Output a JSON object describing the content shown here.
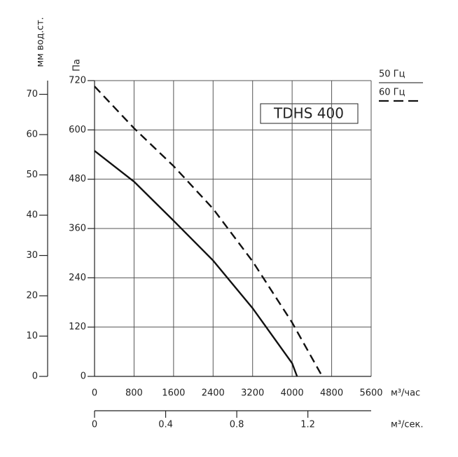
{
  "chart_data": {
    "type": "line",
    "title": "TDHS 400",
    "x_label": "м³/час",
    "y_label": "Па",
    "y2_label": "мм вод.ст.",
    "x2_label": "м³/сек.",
    "xlim": [
      0,
      5600
    ],
    "xticks": [
      0,
      800,
      1600,
      2400,
      3200,
      4000,
      4800,
      5600
    ],
    "ylim": [
      0,
      720
    ],
    "yticks": [
      0,
      120,
      240,
      360,
      480,
      600,
      720
    ],
    "y2lim": [
      0,
      73.4
    ],
    "y2ticks": [
      0,
      10,
      20,
      30,
      40,
      50,
      60,
      70
    ],
    "x2lim": [
      0,
      1.556
    ],
    "x2ticks": [
      0,
      0.4,
      0.8,
      1.2
    ],
    "grid": true,
    "series": [
      {
        "name": "50 Гц",
        "color": "#111111",
        "dash": false,
        "x": [
          0,
          800,
          1600,
          2400,
          3200,
          4000,
          4100
        ],
        "values": [
          549,
          474,
          379,
          282,
          166,
          32,
          0
        ]
      },
      {
        "name": "60 Гц",
        "color": "#111111",
        "dash": true,
        "x": [
          0,
          800,
          1600,
          2400,
          3200,
          4000,
          4610
        ],
        "values": [
          706,
          604,
          512,
          408,
          280,
          131,
          0
        ]
      }
    ]
  }
}
